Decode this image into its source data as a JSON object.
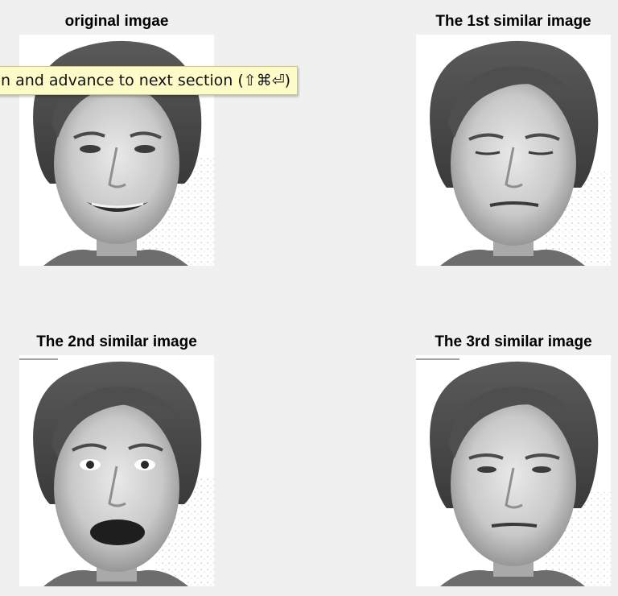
{
  "subplots": [
    {
      "title": "original imgae"
    },
    {
      "title": "The 1st similar image"
    },
    {
      "title": "The 2nd similar image"
    },
    {
      "title": "The 3rd similar image"
    }
  ],
  "tooltip": {
    "text": "n and advance to next section (⇧⌘⏎)"
  },
  "colors": {
    "background": "#f0f0f0",
    "tooltip_bg": "#fdfbc7"
  }
}
